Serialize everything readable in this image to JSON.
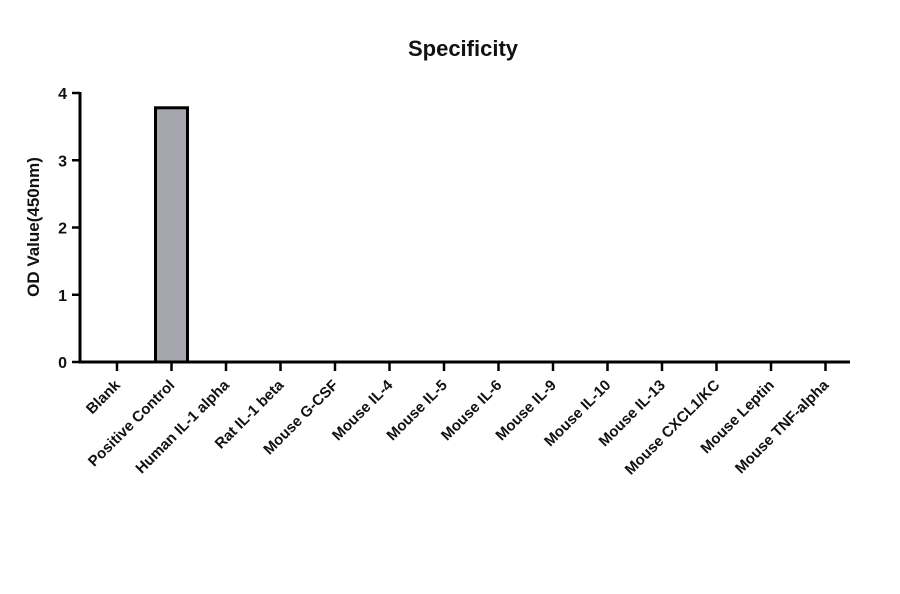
{
  "chart_data": {
    "type": "bar",
    "title": "Specificity",
    "xlabel": "",
    "ylabel": "OD Value(450nm)",
    "ylim": [
      0,
      4
    ],
    "yticks": [
      "0",
      "1",
      "2",
      "3",
      "4"
    ],
    "categories": [
      "Blank",
      "Positive Control",
      "Human IL-1 alpha",
      "Rat IL-1 beta",
      "Mouse G-CSF",
      "Mouse IL-4",
      "Mouse IL-5",
      "Mouse IL-6",
      "Mouse IL-9",
      "Mouse IL-10",
      "Mouse IL-13",
      "Mouse CXCL1/KC",
      "Mouse Leptin",
      "Mouse TNF-alpha"
    ],
    "values": [
      0,
      3.78,
      0,
      0,
      0,
      0,
      0,
      0,
      0,
      0,
      0,
      0,
      0,
      0
    ],
    "grid": false,
    "bar_color": "#a6a6ae",
    "bar_edge_color": "#000000"
  }
}
